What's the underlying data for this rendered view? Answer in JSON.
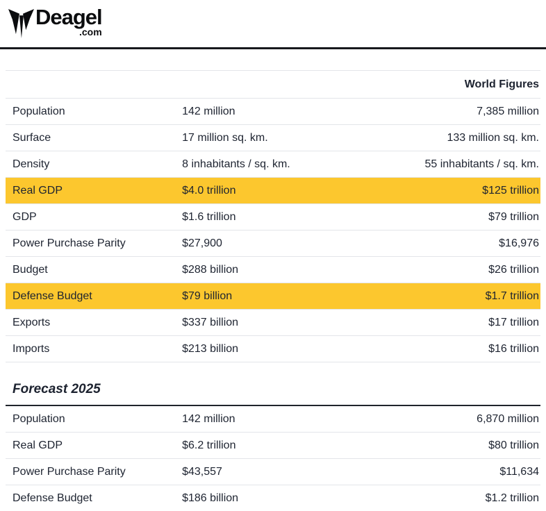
{
  "logo": {
    "brand": "Deagel",
    "tld": ".com"
  },
  "colors": {
    "highlight": "#FCC72E",
    "dark_rule": "#17191d",
    "separator": "#e3e5e9",
    "text": "#1d2330"
  },
  "world_table": {
    "header_col3": "World Figures",
    "rows": [
      {
        "label": "Population",
        "value": "142 million",
        "world": "7,385 million",
        "highlight": false
      },
      {
        "label": "Surface",
        "value": "17 million sq. km.",
        "world": "133 million sq. km.",
        "highlight": false
      },
      {
        "label": "Density",
        "value": "8 inhabitants / sq. km.",
        "world": "55 inhabitants / sq. km.",
        "highlight": false
      },
      {
        "label": "Real GDP",
        "value": "$4.0 trillion",
        "world": "$125 trillion",
        "highlight": true
      },
      {
        "label": "GDP",
        "value": "$1.6 trillion",
        "world": "$79 trillion",
        "highlight": false
      },
      {
        "label": "Power Purchase Parity",
        "value": "$27,900",
        "world": "$16,976",
        "highlight": false
      },
      {
        "label": "Budget",
        "value": "$288 billion",
        "world": "$26 trillion",
        "highlight": false
      },
      {
        "label": "Defense Budget",
        "value": "$79 billion",
        "world": "$1.7 trillion",
        "highlight": true
      },
      {
        "label": "Exports",
        "value": "$337 billion",
        "world": "$17 trillion",
        "highlight": false
      },
      {
        "label": "Imports",
        "value": "$213 billion",
        "world": "$16 trillion",
        "highlight": false
      }
    ]
  },
  "forecast": {
    "title": "Forecast 2025",
    "rows": [
      {
        "label": "Population",
        "value": "142 million",
        "world": "6,870 million",
        "highlight": false
      },
      {
        "label": "Real GDP",
        "value": "$6.2 trillion",
        "world": "$80 trillion",
        "highlight": false
      },
      {
        "label": "Power Purchase Parity",
        "value": "$43,557",
        "world": "$11,634",
        "highlight": false
      },
      {
        "label": "Defense Budget",
        "value": "$186 billion",
        "world": "$1.2 trillion",
        "highlight": false
      }
    ]
  }
}
